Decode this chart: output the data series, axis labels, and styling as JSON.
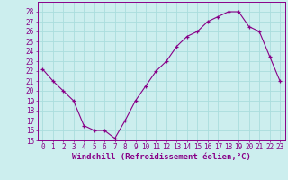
{
  "x": [
    0,
    1,
    2,
    3,
    4,
    5,
    6,
    7,
    8,
    9,
    10,
    11,
    12,
    13,
    14,
    15,
    16,
    17,
    18,
    19,
    20,
    21,
    22,
    23
  ],
  "y": [
    22.2,
    21.0,
    20.0,
    19.0,
    16.5,
    16.0,
    16.0,
    15.2,
    17.0,
    19.0,
    20.5,
    22.0,
    23.0,
    24.5,
    25.5,
    26.0,
    27.0,
    27.5,
    28.0,
    28.0,
    26.5,
    26.0,
    23.5,
    21.0
  ],
  "ylim": [
    15,
    29
  ],
  "yticks": [
    15,
    16,
    17,
    18,
    19,
    20,
    21,
    22,
    23,
    24,
    25,
    26,
    27,
    28
  ],
  "xticks": [
    0,
    1,
    2,
    3,
    4,
    5,
    6,
    7,
    8,
    9,
    10,
    11,
    12,
    13,
    14,
    15,
    16,
    17,
    18,
    19,
    20,
    21,
    22,
    23
  ],
  "xlabel": "Windchill (Refroidissement éolien,°C)",
  "line_color": "#880088",
  "marker": "+",
  "bg_color": "#cceeee",
  "grid_color": "#aadddd",
  "tick_label_fontsize": 5.5,
  "xlabel_fontsize": 6.5
}
